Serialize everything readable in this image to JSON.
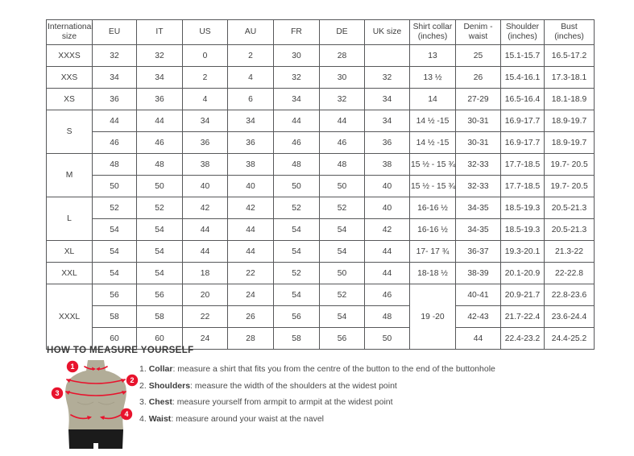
{
  "table": {
    "headers": [
      "International size",
      "EU",
      "IT",
      "US",
      "AU",
      "FR",
      "DE",
      "UK size",
      "Shirt collar (inches)",
      "Denim - waist",
      "Shoulder (inches)",
      "Bust (inches)"
    ],
    "rows": [
      [
        {
          "t": "XXXS"
        },
        {
          "t": "32"
        },
        {
          "t": "32"
        },
        {
          "t": "0"
        },
        {
          "t": "2"
        },
        {
          "t": "30"
        },
        {
          "t": "28"
        },
        {
          "t": ""
        },
        {
          "t": "13"
        },
        {
          "t": "25"
        },
        {
          "t": "15.1-15.7"
        },
        {
          "t": "16.5-17.2"
        }
      ],
      [
        {
          "t": "XXS"
        },
        {
          "t": "34"
        },
        {
          "t": "34"
        },
        {
          "t": "2"
        },
        {
          "t": "4"
        },
        {
          "t": "32"
        },
        {
          "t": "30"
        },
        {
          "t": "32"
        },
        {
          "t": "13 ½"
        },
        {
          "t": "26"
        },
        {
          "t": "15.4-16.1"
        },
        {
          "t": "17.3-18.1"
        }
      ],
      [
        {
          "t": "XS"
        },
        {
          "t": "36"
        },
        {
          "t": "36"
        },
        {
          "t": "4"
        },
        {
          "t": "6"
        },
        {
          "t": "34"
        },
        {
          "t": "32"
        },
        {
          "t": "34"
        },
        {
          "t": "14"
        },
        {
          "t": "27-29"
        },
        {
          "t": "16.5-16.4"
        },
        {
          "t": "18.1-18.9"
        }
      ],
      [
        {
          "t": "S",
          "rs": 2
        },
        {
          "t": "44"
        },
        {
          "t": "44"
        },
        {
          "t": "34"
        },
        {
          "t": "34"
        },
        {
          "t": "44"
        },
        {
          "t": "44"
        },
        {
          "t": "34"
        },
        {
          "t": "14 ½ -15"
        },
        {
          "t": "30-31"
        },
        {
          "t": "16.9-17.7"
        },
        {
          "t": "18.9-19.7"
        }
      ],
      [
        {
          "t": "46"
        },
        {
          "t": "46"
        },
        {
          "t": "36"
        },
        {
          "t": "36"
        },
        {
          "t": "46"
        },
        {
          "t": "46"
        },
        {
          "t": "36"
        },
        {
          "t": "14 ½ -15"
        },
        {
          "t": "30-31"
        },
        {
          "t": "16.9-17.7"
        },
        {
          "t": "18.9-19.7"
        }
      ],
      [
        {
          "t": "M",
          "rs": 2
        },
        {
          "t": "48"
        },
        {
          "t": "48"
        },
        {
          "t": "38"
        },
        {
          "t": "38"
        },
        {
          "t": "48"
        },
        {
          "t": "48"
        },
        {
          "t": "38"
        },
        {
          "t": "15 ½ - 15 ¾"
        },
        {
          "t": "32-33"
        },
        {
          "t": "17.7-18.5"
        },
        {
          "t": "19.7- 20.5"
        }
      ],
      [
        {
          "t": "50"
        },
        {
          "t": "50"
        },
        {
          "t": "40"
        },
        {
          "t": "40"
        },
        {
          "t": "50"
        },
        {
          "t": "50"
        },
        {
          "t": "40"
        },
        {
          "t": "15 ½ - 15 ¾"
        },
        {
          "t": "32-33"
        },
        {
          "t": "17.7-18.5"
        },
        {
          "t": "19.7- 20.5"
        }
      ],
      [
        {
          "t": "L",
          "rs": 2
        },
        {
          "t": "52"
        },
        {
          "t": "52"
        },
        {
          "t": "42"
        },
        {
          "t": "42"
        },
        {
          "t": "52"
        },
        {
          "t": "52"
        },
        {
          "t": "40"
        },
        {
          "t": "16-16 ½"
        },
        {
          "t": "34-35"
        },
        {
          "t": "18.5-19.3"
        },
        {
          "t": "20.5-21.3"
        }
      ],
      [
        {
          "t": "54"
        },
        {
          "t": "54"
        },
        {
          "t": "44"
        },
        {
          "t": "44"
        },
        {
          "t": "54"
        },
        {
          "t": "54"
        },
        {
          "t": "42"
        },
        {
          "t": "16-16 ½"
        },
        {
          "t": "34-35"
        },
        {
          "t": "18.5-19.3"
        },
        {
          "t": "20.5-21.3"
        }
      ],
      [
        {
          "t": "XL"
        },
        {
          "t": "54"
        },
        {
          "t": "54"
        },
        {
          "t": "44"
        },
        {
          "t": "44"
        },
        {
          "t": "54"
        },
        {
          "t": "54"
        },
        {
          "t": "44"
        },
        {
          "t": "17- 17 ¾"
        },
        {
          "t": "36-37"
        },
        {
          "t": "19.3-20.1"
        },
        {
          "t": "21.3-22"
        }
      ],
      [
        {
          "t": "XXL"
        },
        {
          "t": "54"
        },
        {
          "t": "54"
        },
        {
          "t": "18"
        },
        {
          "t": "22"
        },
        {
          "t": "52"
        },
        {
          "t": "50"
        },
        {
          "t": "44"
        },
        {
          "t": "18-18 ½"
        },
        {
          "t": "38-39"
        },
        {
          "t": "20.1-20.9"
        },
        {
          "t": "22-22.8"
        }
      ],
      [
        {
          "t": "XXXL",
          "rs": 3
        },
        {
          "t": "56"
        },
        {
          "t": "56"
        },
        {
          "t": "20"
        },
        {
          "t": "24"
        },
        {
          "t": "54"
        },
        {
          "t": "52"
        },
        {
          "t": "46"
        },
        {
          "t": "19 -20",
          "rs": 3
        },
        {
          "t": "40-41"
        },
        {
          "t": "20.9-21.7"
        },
        {
          "t": "22.8-23.6"
        }
      ],
      [
        {
          "t": "58"
        },
        {
          "t": "58"
        },
        {
          "t": "22"
        },
        {
          "t": "26"
        },
        {
          "t": "56"
        },
        {
          "t": "54"
        },
        {
          "t": "48"
        },
        {
          "t": "42-43"
        },
        {
          "t": "21.7-22.4"
        },
        {
          "t": "23.6-24.4"
        }
      ],
      [
        {
          "t": "60"
        },
        {
          "t": "60"
        },
        {
          "t": "24"
        },
        {
          "t": "28"
        },
        {
          "t": "58"
        },
        {
          "t": "56"
        },
        {
          "t": "50"
        },
        {
          "t": "44"
        },
        {
          "t": "22.4-23.2"
        },
        {
          "t": "24.4-25.2"
        }
      ]
    ]
  },
  "measure_guide": {
    "title": "HOW TO MEASURE YOURSELF",
    "markers": [
      "1",
      "2",
      "3",
      "4"
    ],
    "steps": [
      {
        "num": "1.",
        "label": "Collar",
        "text": ": measure a shirt that fits you from the centre of the button to the end of the buttonhole"
      },
      {
        "num": "2.",
        "label": "Shoulders",
        "text": ": measure the width of the shoulders at the widest point"
      },
      {
        "num": "3.",
        "label": "Chest",
        "text": ": measure yourself from armpit to armpit at the widest point"
      },
      {
        "num": "4.",
        "label": "Waist",
        "text": ": measure around your waist at the navel"
      }
    ]
  },
  "colors": {
    "accent_red": "#e8132d",
    "mannequin_body": "#b2ad98",
    "mannequin_shorts": "#1b1b1b",
    "table_border": "#57585a",
    "text": "#3d3d3d"
  }
}
